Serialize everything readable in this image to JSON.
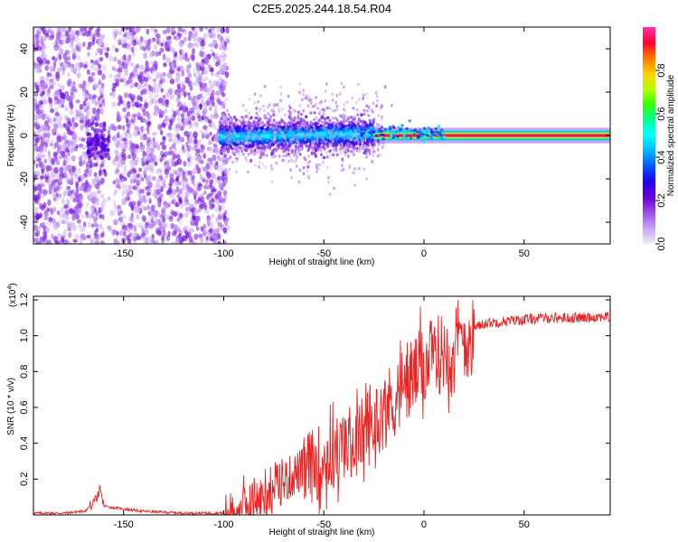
{
  "title": "C2E5.2025.244.18.54.R04",
  "chart_data": [
    {
      "type": "heatmap",
      "name": "spectrogram",
      "xlabel": "Height of straight line (km)",
      "ylabel": "Frequency (Hz)",
      "xlim": [
        -195,
        93
      ],
      "ylim": [
        -50,
        50
      ],
      "xticks": [
        -150,
        -100,
        -50,
        0,
        50
      ],
      "yticks": [
        -40,
        -20,
        0,
        20,
        40
      ],
      "colorbar": {
        "label": "Normalized spectral amplitude",
        "range": [
          0.0,
          1.0
        ],
        "ticks": [
          0.0,
          0.2,
          0.4,
          0.6,
          0.8
        ],
        "colors": [
          "#f2ecfb",
          "#c7a6f5",
          "#9a4fe8",
          "#6a00d8",
          "#2200ee",
          "#0055ff",
          "#00b7ff",
          "#00ffff",
          "#00ff99",
          "#33ff00",
          "#b3ff00",
          "#ffd000",
          "#ff7a00",
          "#ff0033",
          "#ff33aa"
        ]
      },
      "regions": [
        {
          "name": "noise",
          "x_range": [
            -195,
            -100
          ],
          "freq_range": [
            -50,
            50
          ],
          "amplitude": "low"
        },
        {
          "name": "noise-gap",
          "x_range": [
            -160,
            -155
          ],
          "freq_range": [
            -50,
            50
          ],
          "amplitude": "very low"
        },
        {
          "name": "early-signal",
          "x_range": [
            -168,
            -157
          ],
          "freq_range": [
            -15,
            8
          ],
          "amplitude": "low-mid"
        },
        {
          "name": "spread-signal",
          "x_range": [
            -102,
            -25
          ],
          "freq_range": [
            -10,
            12
          ],
          "amplitude": "mid"
        },
        {
          "name": "narrow-line",
          "x_range": [
            -25,
            93
          ],
          "center_hz": 0,
          "half_width_hz": 1.5,
          "amplitude": "high"
        }
      ]
    },
    {
      "type": "line",
      "name": "snr",
      "xlabel": "Height of straight line (km)",
      "ylabel": "SNR (10 * v/v)",
      "y_multiplier": "(x10",
      "y_multiplier_exp": "4",
      "y_multiplier_close": ")",
      "xlim": [
        -195,
        93
      ],
      "ylim": [
        0,
        1.22
      ],
      "xticks": [
        -150,
        -100,
        -50,
        0,
        50
      ],
      "yticks": [
        0.2,
        0.4,
        0.6,
        0.8,
        1.0,
        1.2
      ],
      "color": "#ee2222",
      "series": [
        {
          "name": "SNR",
          "x": [
            -195,
            -180,
            -170,
            -165,
            -162,
            -160,
            -155,
            -140,
            -120,
            -100,
            -95,
            -90,
            -80,
            -70,
            -60,
            -50,
            -45,
            -40,
            -35,
            -30,
            -25,
            -20,
            -15,
            -10,
            -5,
            0,
            5,
            10,
            15,
            20,
            25,
            30,
            40,
            50,
            60,
            70,
            80,
            90,
            93
          ],
          "y": [
            0.01,
            0.01,
            0.02,
            0.05,
            0.12,
            0.05,
            0.04,
            0.02,
            0.01,
            0.01,
            0.02,
            0.05,
            0.12,
            0.2,
            0.27,
            0.33,
            0.36,
            0.4,
            0.44,
            0.48,
            0.53,
            0.6,
            0.67,
            0.74,
            0.8,
            0.86,
            0.9,
            0.94,
            0.97,
            1.0,
            1.04,
            1.07,
            1.08,
            1.09,
            1.1,
            1.1,
            1.1,
            1.11,
            1.1
          ]
        }
      ]
    }
  ]
}
